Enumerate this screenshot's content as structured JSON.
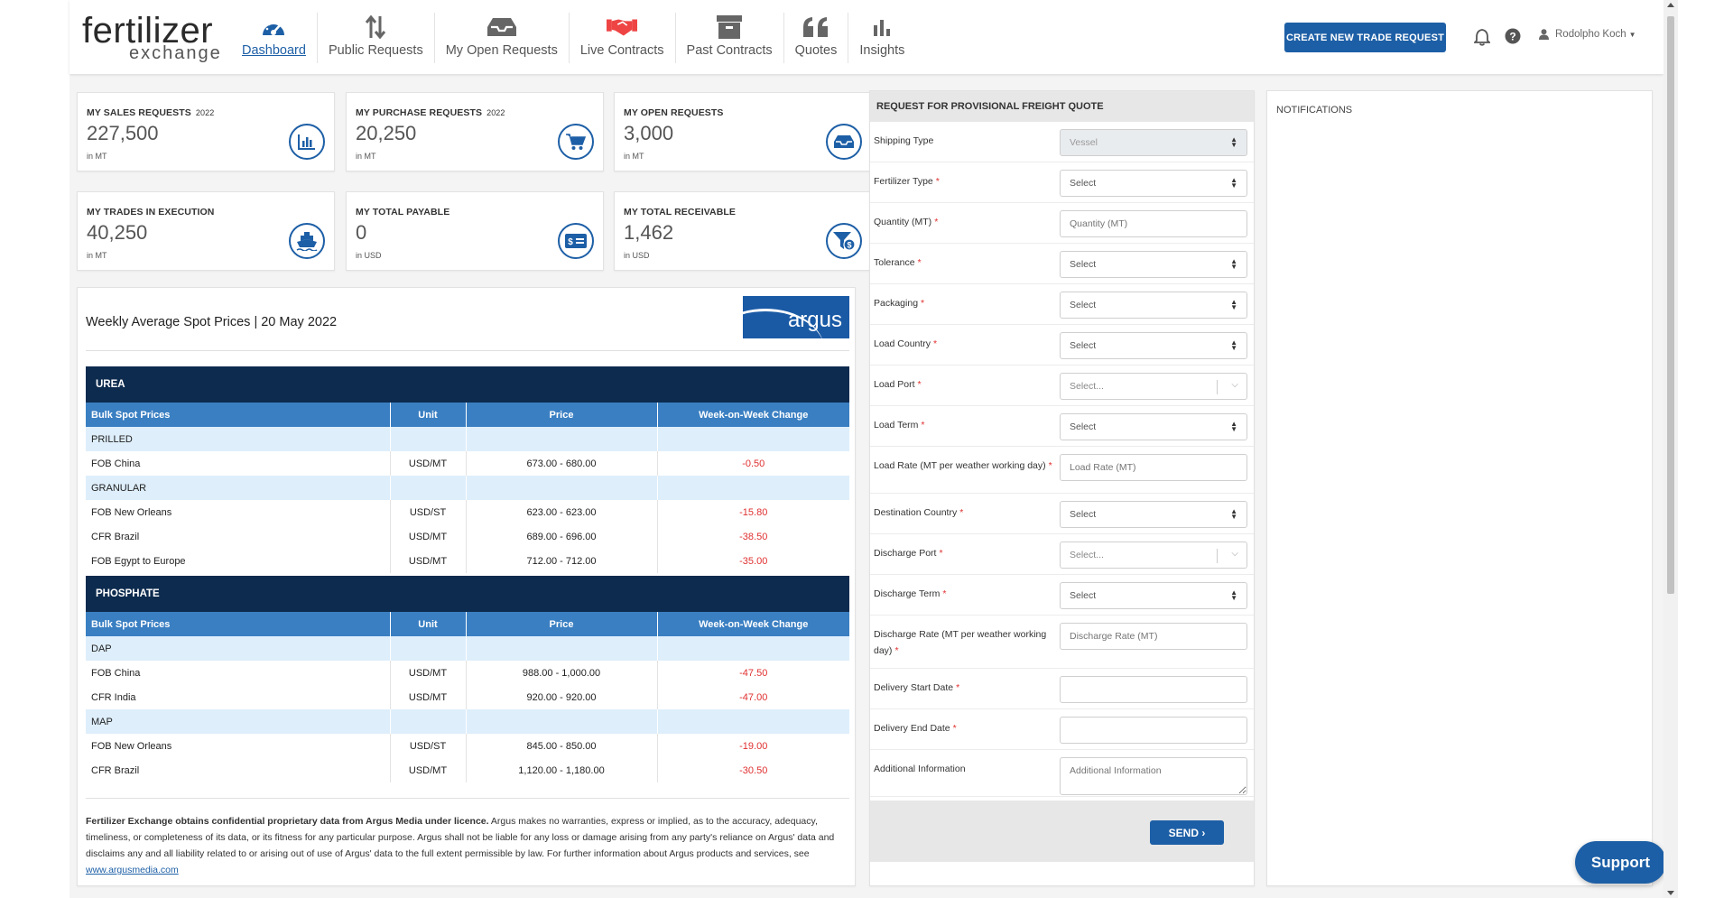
{
  "logo": {
    "line1": "fertilizer",
    "line2": "exchange"
  },
  "nav": [
    {
      "label": "Dashboard",
      "icon": "gauge-icon"
    },
    {
      "label": "Public Requests",
      "icon": "up-down-arrows-icon"
    },
    {
      "label": "My Open Requests",
      "icon": "inbox-tray-icon"
    },
    {
      "label": "Live Contracts",
      "icon": "handshake-icon"
    },
    {
      "label": "Past Contracts",
      "icon": "archive-box-icon"
    },
    {
      "label": "Quotes",
      "icon": "quote-icon"
    },
    {
      "label": "Insights",
      "icon": "bar-chart-icon"
    }
  ],
  "header": {
    "create_button": "CREATE NEW TRADE REQUEST",
    "user_name": "Rodolpho Koch"
  },
  "stats": [
    {
      "title": "MY SALES REQUESTS",
      "year": "2022",
      "value": "227,500",
      "unit": "in MT",
      "icon": "bar-chart-icon"
    },
    {
      "title": "MY PURCHASE REQUESTS",
      "year": "2022",
      "value": "20,250",
      "unit": "in MT",
      "icon": "cart-icon"
    },
    {
      "title": "MY OPEN REQUESTS",
      "year": "",
      "value": "3,000",
      "unit": "in MT",
      "icon": "inbox-tray-icon"
    },
    {
      "title": "MY TRADES IN EXECUTION",
      "year": "",
      "value": "40,250",
      "unit": "in MT",
      "icon": "ship-icon"
    },
    {
      "title": "MY TOTAL PAYABLE",
      "year": "",
      "value": "0",
      "unit": "in USD",
      "icon": "money-bill-icon"
    },
    {
      "title": "MY TOTAL RECEIVABLE",
      "year": "",
      "value": "1,462",
      "unit": "in USD",
      "icon": "funnel-dollar-icon"
    }
  ],
  "prices": {
    "title": "Weekly Average Spot Prices | 20 May 2022",
    "brand": "argus",
    "columns": [
      "Bulk Spot Prices",
      "Unit",
      "Price",
      "Week-on-Week Change"
    ],
    "sections": [
      {
        "name": "UREA",
        "groups": [
          {
            "name": "PRILLED",
            "rows": [
              {
                "item": "FOB China",
                "unit": "USD/MT",
                "price": "673.00 - 680.00",
                "change": "-0.50"
              }
            ]
          },
          {
            "name": "GRANULAR",
            "rows": [
              {
                "item": "FOB New Orleans",
                "unit": "USD/ST",
                "price": "623.00 - 623.00",
                "change": "-15.80"
              },
              {
                "item": "CFR Brazil",
                "unit": "USD/MT",
                "price": "689.00 - 696.00",
                "change": "-38.50"
              },
              {
                "item": "FOB Egypt to Europe",
                "unit": "USD/MT",
                "price": "712.00 - 712.00",
                "change": "-35.00"
              }
            ]
          }
        ]
      },
      {
        "name": "PHOSPHATE",
        "groups": [
          {
            "name": "DAP",
            "rows": [
              {
                "item": "FOB China",
                "unit": "USD/MT",
                "price": "988.00 - 1,000.00",
                "change": "-47.50"
              },
              {
                "item": "CFR India",
                "unit": "USD/MT",
                "price": "920.00 - 920.00",
                "change": "-47.00"
              }
            ]
          },
          {
            "name": "MAP",
            "rows": [
              {
                "item": "FOB New Orleans",
                "unit": "USD/ST",
                "price": "845.00 - 850.00",
                "change": "-19.00"
              },
              {
                "item": "CFR Brazil",
                "unit": "USD/MT",
                "price": "1,120.00 - 1,180.00",
                "change": "-30.50"
              }
            ]
          }
        ]
      }
    ],
    "disclaimer_bold": "Fertilizer Exchange obtains confidential proprietary data from Argus Media under licence.",
    "disclaimer_text": " Argus makes no warranties, express or implied, as to the accuracy, adequacy, timeliness, or completeness of its data, or its fitness for any particular purpose. Argus shall not be liable for any loss or damage arising from any party's reliance on Argus' data and disclaims any and all liability related to or arising out of use of Argus' data to the full extent permissible by law. For further information about Argus products and services, see ",
    "disclaimer_link": "www.argusmedia.com"
  },
  "freight": {
    "title": "REQUEST FOR PROVISIONAL FREIGHT QUOTE",
    "fields": [
      {
        "label": "Shipping Type",
        "required": false,
        "kind": "select",
        "value": "Vessel",
        "disabled": true
      },
      {
        "label": "Fertilizer Type",
        "required": true,
        "kind": "select",
        "value": "Select"
      },
      {
        "label": "Quantity (MT)",
        "required": true,
        "kind": "input",
        "placeholder": "Quantity (MT)"
      },
      {
        "label": "Tolerance",
        "required": true,
        "kind": "select",
        "value": "Select"
      },
      {
        "label": "Packaging",
        "required": true,
        "kind": "select",
        "value": "Select"
      },
      {
        "label": "Load Country",
        "required": true,
        "kind": "select",
        "value": "Select"
      },
      {
        "label": "Load Port",
        "required": true,
        "kind": "combo",
        "value": "Select..."
      },
      {
        "label": "Load Term",
        "required": true,
        "kind": "select",
        "value": "Select"
      },
      {
        "label": "Load Rate (MT per weather working day)",
        "required": true,
        "kind": "input",
        "placeholder": "Load Rate (MT)"
      },
      {
        "label": "Destination Country",
        "required": true,
        "kind": "select",
        "value": "Select"
      },
      {
        "label": "Discharge Port",
        "required": true,
        "kind": "combo",
        "value": "Select..."
      },
      {
        "label": "Discharge Term",
        "required": true,
        "kind": "select",
        "value": "Select"
      },
      {
        "label": "Discharge Rate (MT per weather working day)",
        "required": true,
        "kind": "input",
        "placeholder": "Discharge Rate (MT)"
      },
      {
        "label": "Delivery Start Date",
        "required": true,
        "kind": "input",
        "placeholder": ""
      },
      {
        "label": "Delivery End Date",
        "required": true,
        "kind": "input",
        "placeholder": ""
      },
      {
        "label": "Additional Information",
        "required": false,
        "kind": "textarea",
        "placeholder": "Additional Information"
      }
    ],
    "send_label": "SEND"
  },
  "notifications": {
    "title": "NOTIFICATIONS"
  },
  "support_label": "Support",
  "colors": {
    "brand_blue": "#1d5fa6",
    "section_navy": "#0d2b4e",
    "header_blue": "#3a7fc2",
    "group_bg": "#deeefb",
    "negative_red": "#e03030"
  }
}
